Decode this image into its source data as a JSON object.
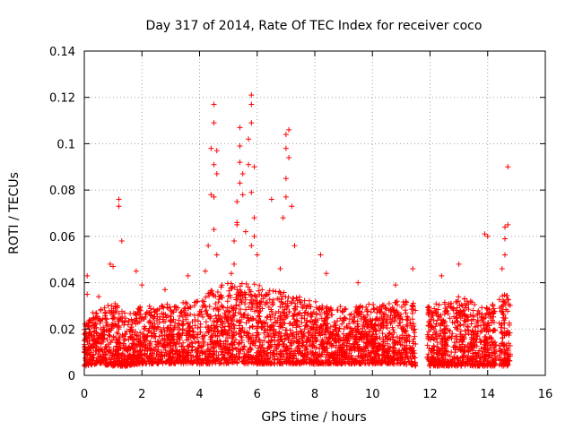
{
  "chart_data": {
    "type": "scatter",
    "title": "Day 317 of 2014, Rate Of TEC Index for receiver coco",
    "xlabel": "GPS time / hours",
    "ylabel": "ROTI / TECUs",
    "xlim": [
      0,
      16
    ],
    "ylim": [
      0,
      0.14
    ],
    "grid": true,
    "marker": "plus",
    "color": "#ff0000",
    "x_ticks": [
      0,
      2,
      4,
      6,
      8,
      10,
      12,
      14,
      16
    ],
    "x_tick_labels": [
      "0",
      "2",
      "4",
      "6",
      "8",
      "10",
      "12",
      "14",
      "16"
    ],
    "y_ticks": [
      0,
      0.02,
      0.04,
      0.06,
      0.08,
      0.1,
      0.12,
      0.14
    ],
    "y_tick_labels": [
      "0",
      "0.02",
      "0.04",
      "0.06",
      "0.08",
      "0.1",
      "0.12",
      "0.14"
    ],
    "data_gaps_hours": [
      [
        11.5,
        11.9
      ],
      [
        14.3,
        14.4
      ],
      [
        14.8,
        16
      ]
    ],
    "series": [
      {
        "name": "ROTI",
        "x": [
          0.1,
          0.1,
          0.3,
          0.5,
          0.9,
          1.0,
          1.2,
          1.2,
          1.3,
          1.8,
          2.0,
          2.8,
          3.6,
          4.2,
          4.3,
          4.4,
          4.4,
          4.5,
          4.5,
          4.5,
          4.5,
          4.5,
          4.6,
          4.6,
          4.6,
          4.7,
          5.1,
          5.2,
          5.2,
          5.3,
          5.3,
          5.3,
          5.4,
          5.4,
          5.4,
          5.4,
          5.5,
          5.5,
          5.6,
          5.7,
          5.7,
          5.8,
          5.8,
          5.8,
          5.8,
          5.8,
          5.9,
          5.9,
          5.9,
          6.0,
          6.5,
          6.8,
          6.9,
          7.0,
          7.0,
          7.0,
          7.0,
          7.1,
          7.1,
          7.2,
          7.3,
          8.2,
          8.4,
          9.5,
          10.8,
          11.4,
          12.4,
          13.0,
          13.9,
          14.0,
          14.5,
          14.6,
          14.6,
          14.6,
          14.7,
          14.7
        ],
        "y": [
          0.043,
          0.035,
          0.027,
          0.034,
          0.048,
          0.047,
          0.076,
          0.073,
          0.058,
          0.045,
          0.039,
          0.037,
          0.043,
          0.045,
          0.056,
          0.078,
          0.098,
          0.117,
          0.109,
          0.091,
          0.077,
          0.063,
          0.097,
          0.087,
          0.052,
          0.034,
          0.044,
          0.058,
          0.048,
          0.065,
          0.066,
          0.075,
          0.083,
          0.092,
          0.099,
          0.107,
          0.078,
          0.087,
          0.062,
          0.091,
          0.102,
          0.121,
          0.117,
          0.109,
          0.079,
          0.056,
          0.09,
          0.068,
          0.06,
          0.052,
          0.076,
          0.046,
          0.068,
          0.077,
          0.085,
          0.098,
          0.104,
          0.106,
          0.094,
          0.073,
          0.056,
          0.052,
          0.044,
          0.04,
          0.039,
          0.046,
          0.043,
          0.048,
          0.061,
          0.06,
          0.046,
          0.052,
          0.059,
          0.064,
          0.065,
          0.09
        ]
      }
    ],
    "baseline_envelope": {
      "description": "dense band of ROTI values across the observed hours",
      "hours": [
        0,
        0.5,
        1,
        1.5,
        2,
        2.5,
        3,
        3.5,
        4,
        4.5,
        5,
        5.5,
        6,
        6.5,
        7,
        7.5,
        8,
        8.5,
        9,
        9.5,
        10,
        10.5,
        11,
        11.5,
        12,
        12.5,
        13,
        13.5,
        14,
        14.5
      ],
      "low": [
        0.004,
        0.005,
        0.004,
        0.004,
        0.005,
        0.005,
        0.005,
        0.005,
        0.005,
        0.005,
        0.005,
        0.005,
        0.005,
        0.005,
        0.005,
        0.005,
        0.005,
        0.005,
        0.005,
        0.005,
        0.005,
        0.005,
        0.005,
        0.004,
        0.004,
        0.004,
        0.004,
        0.004,
        0.004,
        0.004
      ],
      "high": [
        0.022,
        0.028,
        0.032,
        0.026,
        0.03,
        0.03,
        0.031,
        0.032,
        0.032,
        0.038,
        0.04,
        0.04,
        0.04,
        0.037,
        0.036,
        0.034,
        0.032,
        0.03,
        0.03,
        0.03,
        0.031,
        0.032,
        0.032,
        0.032,
        0.03,
        0.032,
        0.034,
        0.032,
        0.03,
        0.035
      ]
    }
  }
}
